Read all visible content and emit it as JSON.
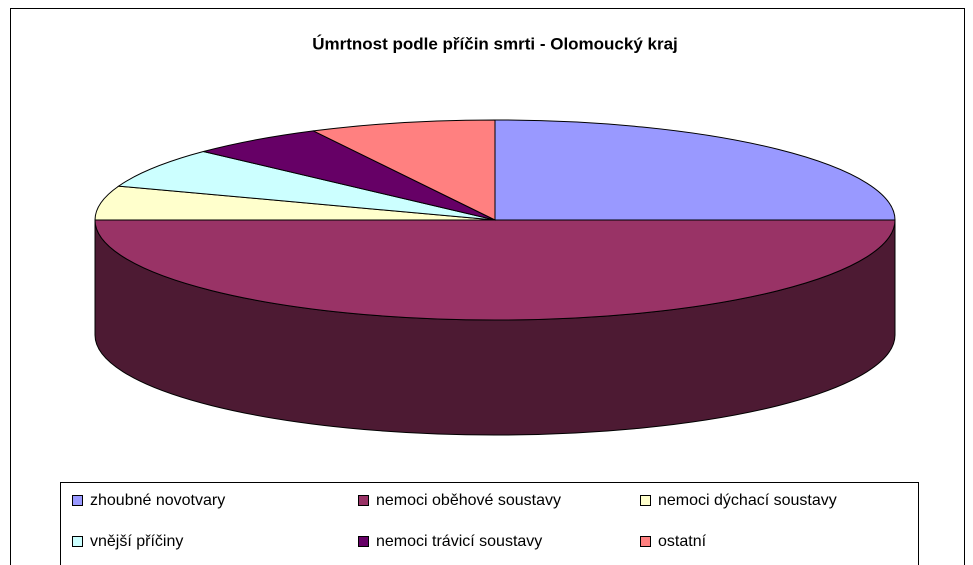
{
  "chart_data": {
    "type": "pie3d",
    "title": "Úmrtnost podle příčin smrti - Olomoucký kraj",
    "categories": [
      "zhoubné novotvary",
      "nemoci oběhové soustavy",
      "nemoci dýchací soustavy",
      "vnější příčiny",
      "nemoci trávicí soustavy",
      "ostatní"
    ],
    "values": [
      25,
      50,
      5.5,
      6.5,
      5.5,
      7.5
    ],
    "colors": [
      "#9999ff",
      "#993366",
      "#ffffcc",
      "#ccffff",
      "#660066",
      "#ff8080"
    ],
    "legend": "bottom"
  }
}
